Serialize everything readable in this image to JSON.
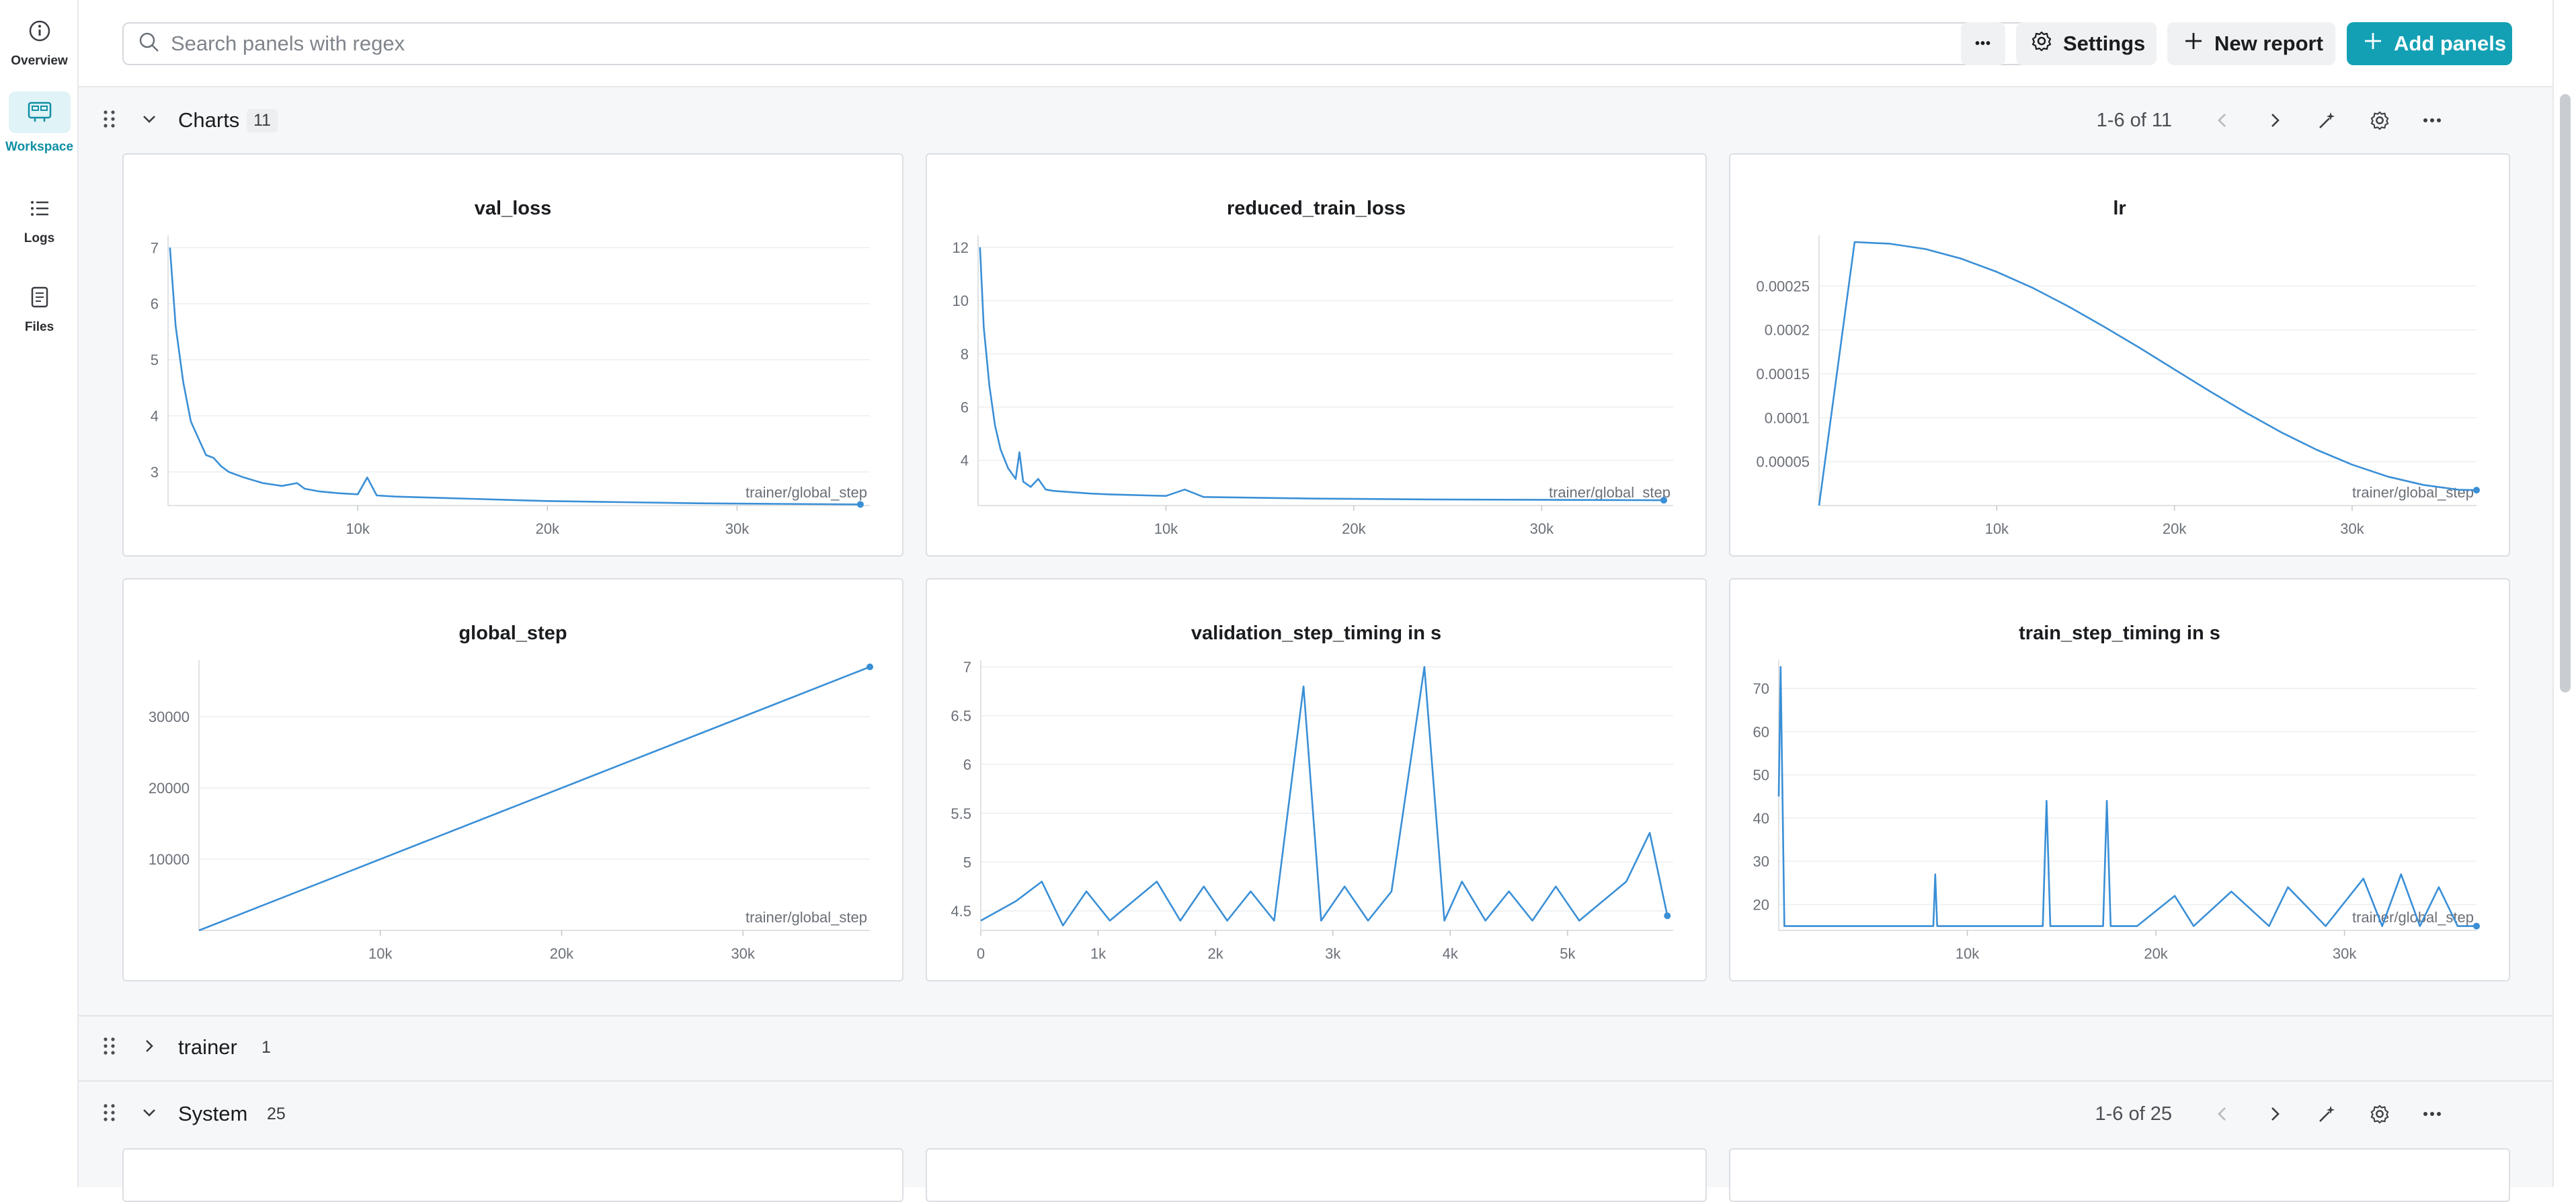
{
  "rail": {
    "items": [
      {
        "label": "Overview",
        "icon": "info-icon"
      },
      {
        "label": "Workspace",
        "icon": "workspace-icon",
        "active": true
      },
      {
        "label": "Logs",
        "icon": "list-icon"
      },
      {
        "label": "Files",
        "icon": "file-icon"
      }
    ]
  },
  "topbar": {
    "search_placeholder": "Search panels with regex",
    "more_label": "•••",
    "settings_label": "Settings",
    "new_report_label": "New report",
    "add_panels_label": "Add panels"
  },
  "sections": {
    "charts": {
      "title": "Charts",
      "count": "11",
      "pager": "1-6 of 11"
    },
    "trainer": {
      "title": "trainer",
      "count": "1"
    },
    "system": {
      "title": "System",
      "count": "25",
      "pager": "1-6 of 25"
    }
  },
  "colors": {
    "line": "#3a8fd6",
    "accent": "#13a0b4"
  },
  "chart_data": [
    {
      "type": "line",
      "title": "val_loss",
      "xlabel": "trainer/global_step",
      "xticks": [
        "10k",
        "20k",
        "30k"
      ],
      "yticks": [
        "3",
        "4",
        "5",
        "6",
        "7"
      ],
      "xlim": [
        0,
        37000
      ],
      "ylim": [
        2.4,
        7.1
      ],
      "series": [
        {
          "x": [
            100,
            400,
            800,
            1200,
            1600,
            2000,
            2400,
            2800,
            3200,
            4000,
            5000,
            6000,
            6800,
            7200,
            8000,
            9000,
            10000,
            10500,
            11000,
            12000,
            14000,
            16000,
            18000,
            20000,
            24000,
            28000,
            32000,
            36500
          ],
          "y": [
            7.0,
            5.6,
            4.6,
            3.9,
            3.6,
            3.3,
            3.25,
            3.1,
            3.0,
            2.9,
            2.8,
            2.75,
            2.8,
            2.7,
            2.65,
            2.62,
            2.6,
            2.9,
            2.58,
            2.56,
            2.54,
            2.52,
            2.5,
            2.48,
            2.46,
            2.44,
            2.43,
            2.42
          ]
        }
      ]
    },
    {
      "type": "line",
      "title": "reduced_train_loss",
      "xlabel": "trainer/global_step",
      "xticks": [
        "10k",
        "20k",
        "30k"
      ],
      "yticks": [
        "4",
        "6",
        "8",
        "10",
        "12"
      ],
      "xlim": [
        0,
        37000
      ],
      "ylim": [
        2.3,
        12.2
      ],
      "series": [
        {
          "x": [
            100,
            300,
            600,
            900,
            1200,
            1600,
            2000,
            2200,
            2400,
            2800,
            3200,
            3600,
            4000,
            5000,
            6000,
            7000,
            8000,
            9000,
            10000,
            11000,
            12000,
            14000,
            16000,
            18000,
            20000,
            24000,
            28000,
            32000,
            36500
          ],
          "y": [
            12.0,
            9.0,
            6.8,
            5.3,
            4.4,
            3.7,
            3.3,
            4.3,
            3.2,
            3.0,
            3.3,
            2.9,
            2.85,
            2.8,
            2.75,
            2.72,
            2.7,
            2.68,
            2.66,
            2.9,
            2.62,
            2.6,
            2.58,
            2.56,
            2.55,
            2.53,
            2.52,
            2.51,
            2.5
          ]
        }
      ]
    },
    {
      "type": "line",
      "title": "lr",
      "xlabel": "trainer/global_step",
      "xticks": [
        "10k",
        "20k",
        "30k"
      ],
      "yticks": [
        "0.00005",
        "0.0001",
        "0.00015",
        "0.0002",
        "0.00025"
      ],
      "xlim": [
        0,
        37000
      ],
      "ylim": [
        0,
        0.0003
      ],
      "series": [
        {
          "x": [
            0,
            2000,
            4000,
            6000,
            8000,
            10000,
            12000,
            14000,
            16000,
            18000,
            20000,
            22000,
            24000,
            26000,
            28000,
            30000,
            32000,
            34000,
            36000,
            37000
          ],
          "y": [
            0.0,
            0.0003,
            0.000298,
            0.000292,
            0.000281,
            0.000266,
            0.000248,
            0.000227,
            0.000204,
            0.00018,
            0.000155,
            0.00013,
            0.000106,
            8.35e-05,
            6.35e-05,
            4.65e-05,
            3.3e-05,
            2.35e-05,
            1.8e-05,
            1.75e-05
          ]
        }
      ]
    },
    {
      "type": "line",
      "title": "global_step",
      "xlabel": "trainer/global_step",
      "xticks": [
        "10k",
        "20k",
        "30k"
      ],
      "yticks": [
        "10000",
        "20000",
        "30000"
      ],
      "xlim": [
        0,
        37000
      ],
      "ylim": [
        0,
        37000
      ],
      "series": [
        {
          "x": [
            0,
            37000
          ],
          "y": [
            0,
            37000
          ]
        }
      ]
    },
    {
      "type": "line",
      "title": "validation_step_timing in s",
      "xlabel": "",
      "xticks": [
        "0",
        "1k",
        "2k",
        "3k",
        "4k",
        "5k"
      ],
      "yticks": [
        "4.5",
        "5",
        "5.5",
        "6",
        "6.5",
        "7"
      ],
      "xlim": [
        0,
        5900
      ],
      "ylim": [
        4.3,
        7.0
      ],
      "series": [
        {
          "x": [
            0,
            300,
            520,
            700,
            900,
            1100,
            1300,
            1500,
            1700,
            1900,
            2100,
            2300,
            2500,
            2750,
            2900,
            3100,
            3300,
            3500,
            3780,
            3950,
            4100,
            4300,
            4500,
            4700,
            4900,
            5100,
            5300,
            5500,
            5700,
            5850
          ],
          "y": [
            4.4,
            4.6,
            4.8,
            4.35,
            4.7,
            4.4,
            4.6,
            4.8,
            4.4,
            4.75,
            4.4,
            4.7,
            4.4,
            6.8,
            4.4,
            4.75,
            4.4,
            4.7,
            7.0,
            4.4,
            4.8,
            4.4,
            4.7,
            4.4,
            4.75,
            4.4,
            4.6,
            4.8,
            5.3,
            4.45
          ]
        }
      ]
    },
    {
      "type": "line",
      "title": "train_step_timing in s",
      "xlabel": "trainer/global_step",
      "xticks": [
        "10k",
        "20k",
        "30k"
      ],
      "yticks": [
        "20",
        "30",
        "40",
        "50",
        "60",
        "70"
      ],
      "xlim": [
        0,
        37000
      ],
      "ylim": [
        14,
        75
      ],
      "series": [
        {
          "x": [
            0,
            100,
            300,
            600,
            8200,
            8300,
            8400,
            14000,
            14200,
            14400,
            17200,
            17400,
            17600,
            19000,
            21000,
            22000,
            24000,
            26000,
            27000,
            29000,
            31000,
            32000,
            33000,
            34000,
            35000,
            36000,
            37000
          ],
          "y": [
            45,
            75,
            15,
            15,
            15,
            27,
            15,
            15,
            44,
            15,
            15,
            44,
            15,
            15,
            22,
            15,
            23,
            15,
            24,
            15,
            26,
            15,
            27,
            15,
            24,
            15,
            15
          ]
        }
      ]
    }
  ]
}
